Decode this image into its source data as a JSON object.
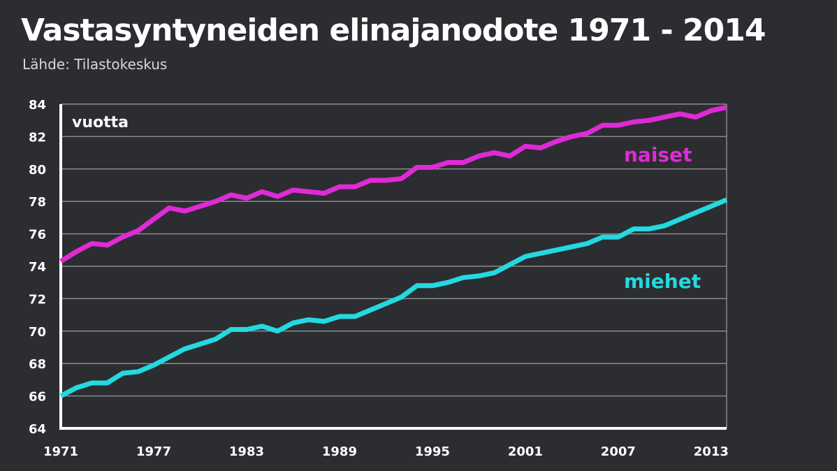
{
  "header": {
    "title": "Vastasyntyneiden elinajanodote 1971 - 2014",
    "subtitle": "Lähde: Tilastokeskus"
  },
  "colors": {
    "background": "#2c2d31",
    "grid": "#8a8a8d",
    "axis": "#ffffff",
    "naiset": "#e02ad6",
    "miehet": "#24d9e0"
  },
  "chart_data": {
    "type": "line",
    "title": "Vastasyntyneiden elinajanodote 1971 - 2014",
    "ylabel": "vuotta",
    "xlabel": "",
    "xlim": [
      1971,
      2014
    ],
    "ylim": [
      64,
      84
    ],
    "yticks": [
      64,
      66,
      68,
      70,
      72,
      74,
      76,
      78,
      80,
      82,
      84
    ],
    "xticks": [
      1971,
      1977,
      1983,
      1989,
      1995,
      2001,
      2007,
      2013
    ],
    "grid": true,
    "legend": "inline",
    "x": [
      1971,
      1972,
      1973,
      1974,
      1975,
      1976,
      1977,
      1978,
      1979,
      1980,
      1981,
      1982,
      1983,
      1984,
      1985,
      1986,
      1987,
      1988,
      1989,
      1990,
      1991,
      1992,
      1993,
      1994,
      1995,
      1996,
      1997,
      1998,
      1999,
      2000,
      2001,
      2002,
      2003,
      2004,
      2005,
      2006,
      2007,
      2008,
      2009,
      2010,
      2011,
      2012,
      2013,
      2014
    ],
    "series": [
      {
        "name": "naiset",
        "values": [
          74.3,
          74.9,
          75.4,
          75.3,
          75.8,
          76.2,
          76.9,
          77.6,
          77.4,
          77.7,
          78.0,
          78.4,
          78.2,
          78.6,
          78.3,
          78.7,
          78.6,
          78.5,
          78.9,
          78.9,
          79.3,
          79.3,
          79.4,
          80.1,
          80.1,
          80.4,
          80.4,
          80.8,
          81.0,
          80.8,
          81.4,
          81.3,
          81.7,
          82.0,
          82.2,
          82.7,
          82.7,
          82.9,
          83.0,
          83.2,
          83.4,
          83.2,
          83.6,
          83.8
        ]
      },
      {
        "name": "miehet",
        "values": [
          66.0,
          66.5,
          66.8,
          66.8,
          67.4,
          67.5,
          67.9,
          68.4,
          68.9,
          69.2,
          69.5,
          70.1,
          70.1,
          70.3,
          70.0,
          70.5,
          70.7,
          70.6,
          70.9,
          70.9,
          71.3,
          71.7,
          72.1,
          72.8,
          72.8,
          73.0,
          73.3,
          73.4,
          73.6,
          74.1,
          74.6,
          74.8,
          75.0,
          75.2,
          75.4,
          75.8,
          75.8,
          76.3,
          76.3,
          76.5,
          76.9,
          77.3,
          77.7,
          78.1
        ]
      }
    ]
  }
}
